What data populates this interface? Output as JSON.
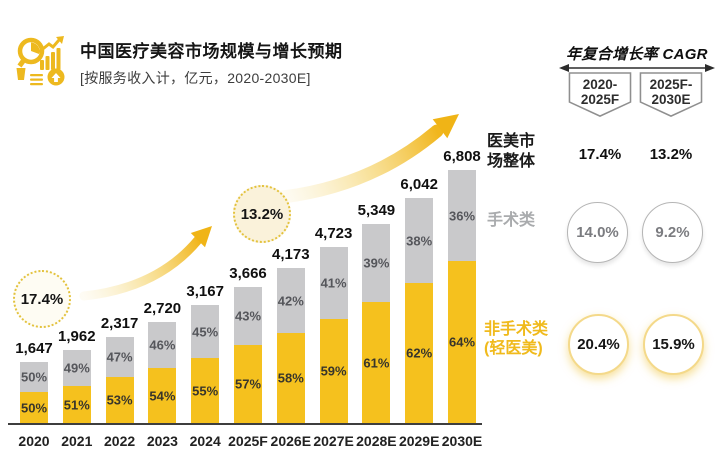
{
  "header": {
    "title": "中国医疗美容市场规模与增长预期",
    "subtitle": "[按服务收入计，亿元，2020-2030E]",
    "logo_icon": "analytics-magnifier-icon"
  },
  "colors": {
    "non_surgical_yellow": "#f5c11e",
    "surgical_gray": "#c9c9cb",
    "accent_gold": "#f0b416",
    "label_gray": "#a9abad"
  },
  "chart_data": {
    "type": "bar",
    "stacked": true,
    "title": "中国医疗美容市场规模与增长预期",
    "unit": "亿元",
    "categories": [
      "2020",
      "2021",
      "2022",
      "2023",
      "2024",
      "2025F",
      "2026E",
      "2027E",
      "2028E",
      "2029E",
      "2030E"
    ],
    "totals": [
      1647,
      1962,
      2317,
      2720,
      3167,
      3666,
      4173,
      4723,
      5349,
      6042,
      6808
    ],
    "total_labels": [
      "1,647",
      "1,962",
      "2,317",
      "2,720",
      "3,167",
      "3,666",
      "4,173",
      "4,723",
      "5,349",
      "6,042",
      "6,808"
    ],
    "series": [
      {
        "name": "非手术类(轻医美)",
        "position": "bottom",
        "color": "#f5c11e",
        "share_pct": [
          50,
          51,
          53,
          54,
          55,
          57,
          58,
          59,
          61,
          62,
          64
        ]
      },
      {
        "name": "手术类",
        "position": "top",
        "color": "#c9c9cb",
        "share_pct": [
          50,
          49,
          47,
          46,
          45,
          43,
          42,
          41,
          39,
          38,
          36
        ]
      }
    ],
    "ylim": [
      0,
      6808
    ],
    "annotations": [
      {
        "text": "17.4%",
        "style": "dotted-circle"
      },
      {
        "text": "13.2%",
        "style": "dotted-circle"
      }
    ],
    "legend_labels": {
      "market_total_lines": [
        "医美市",
        "场整体"
      ],
      "surgical": "手术类",
      "non_surgical_lines": [
        "非手术类",
        "(轻医美)"
      ]
    }
  },
  "cagr_panel": {
    "title": "年复合增长率 CAGR",
    "period_flags": [
      {
        "line1": "2020-",
        "line2": "2025F"
      },
      {
        "line1": "2025F-",
        "line2": "2030E"
      }
    ],
    "market_total_values": [
      "17.4%",
      "13.2%"
    ],
    "surgical_values": [
      "14.0%",
      "9.2%"
    ],
    "non_surgical_values": [
      "20.4%",
      "15.9%"
    ]
  }
}
